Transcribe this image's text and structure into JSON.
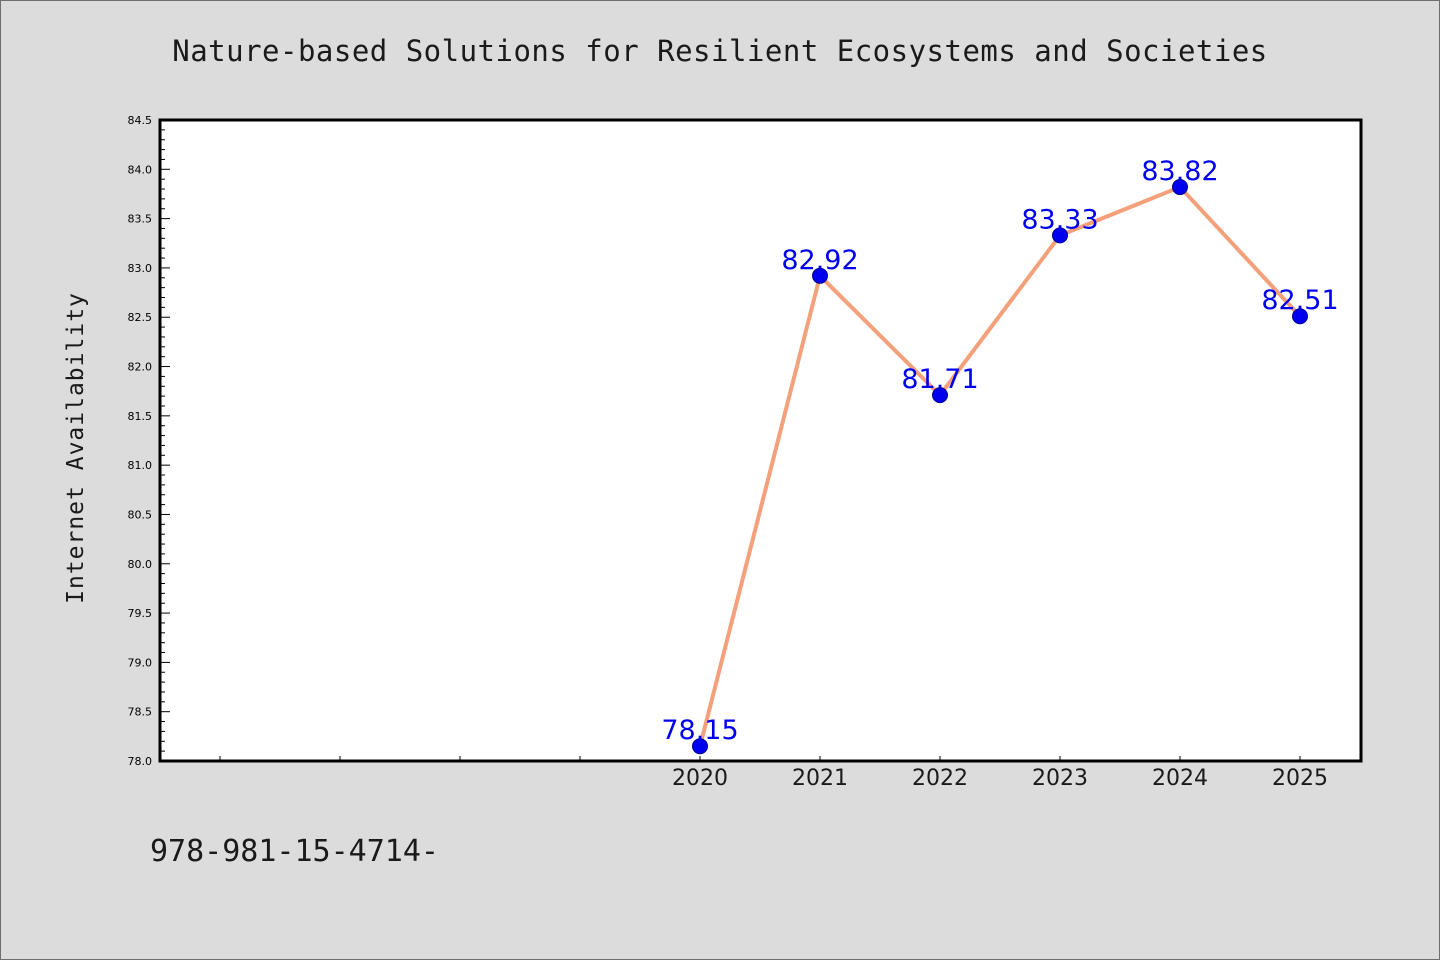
{
  "chart_data": {
    "type": "line",
    "title": "Nature-based Solutions for Resilient Ecosystems and Societies",
    "xlabel": "",
    "ylabel": "Internet Availability",
    "x": [
      "2020",
      "2021",
      "2022",
      "2023",
      "2024",
      "2025"
    ],
    "series": [
      {
        "values": [
          78.15,
          82.92,
          81.71,
          83.33,
          83.82,
          82.51
        ],
        "labels": [
          "78.15",
          "82.92",
          "81.71",
          "83.33",
          "83.82",
          "82.51"
        ],
        "line_color": "#f4a07a",
        "marker_color": "#0000ee"
      }
    ],
    "ylim": [
      78.0,
      84.5
    ],
    "yticks": [
      "78.0",
      "78.5",
      "79.0",
      "79.5",
      "80.0",
      "80.5",
      "81.0",
      "81.5",
      "82.0",
      "82.5",
      "83.0",
      "83.5",
      "84.0",
      "84.5"
    ],
    "label_color": "#0000ee",
    "grid": false,
    "legend": "none"
  },
  "footer_text": "978-981-15-4714-"
}
